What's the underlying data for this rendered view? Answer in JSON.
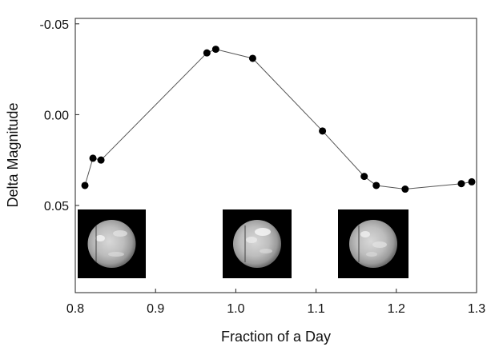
{
  "chart_data": {
    "type": "line",
    "xlabel": "Fraction of a Day",
    "ylabel": "Delta Magnitude",
    "xlim": [
      0.8,
      1.3
    ],
    "ylim": [
      0.098,
      -0.053
    ],
    "y_inverted": true,
    "x_ticks": [
      {
        "value": 0.8,
        "label": "0.8"
      },
      {
        "value": 0.9,
        "label": "0.9"
      },
      {
        "value": 1.0,
        "label": "1.0"
      },
      {
        "value": 1.1,
        "label": "1.1"
      },
      {
        "value": 1.2,
        "label": "1.2"
      },
      {
        "value": 1.3,
        "label": "1.3"
      }
    ],
    "y_ticks": [
      {
        "value": -0.05,
        "label": "-0.05"
      },
      {
        "value": 0.0,
        "label": "0.00"
      },
      {
        "value": 0.05,
        "label": "0.05"
      }
    ],
    "grid": false,
    "marker": "filled-circle",
    "line_color": "#555555",
    "marker_color": "#000000",
    "series": [
      {
        "x": [
          0.812,
          0.822,
          0.832,
          0.964,
          0.975,
          1.021,
          1.108,
          1.16,
          1.175,
          1.211,
          1.281,
          1.294
        ],
        "y": [
          0.039,
          0.024,
          0.025,
          -0.034,
          -0.036,
          -0.031,
          0.009,
          0.034,
          0.039,
          0.041,
          0.038,
          0.037
        ]
      }
    ],
    "inset_images": [
      {
        "name": "planet-image-1",
        "description_icon": "planet-disk-icon"
      },
      {
        "name": "planet-image-2",
        "description_icon": "planet-disk-icon"
      },
      {
        "name": "planet-image-3",
        "description_icon": "planet-disk-icon"
      }
    ]
  }
}
